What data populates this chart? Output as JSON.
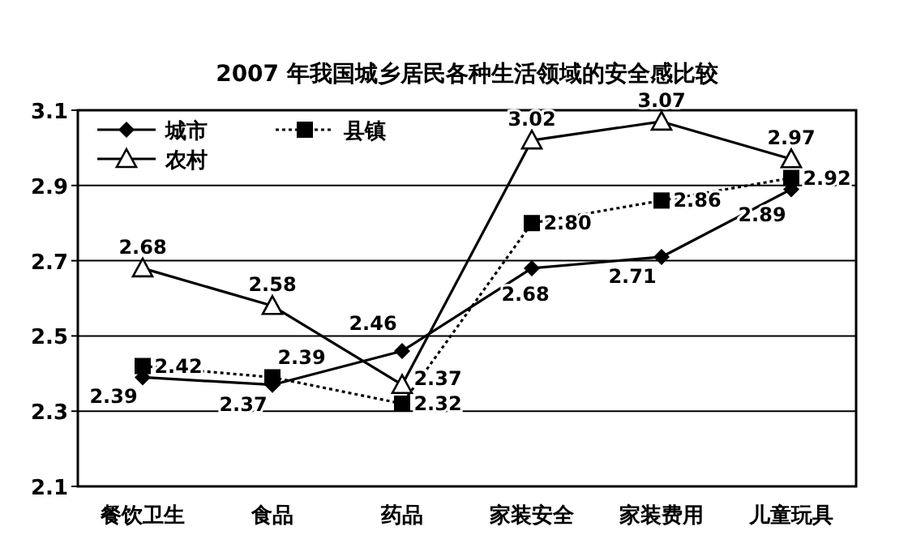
{
  "chart_data": {
    "type": "line",
    "title": "2007 年我国城乡居民各种生活领域的安全感比较",
    "categories": [
      "餐饮卫生",
      "食品",
      "药品",
      "家装安全",
      "家装费用",
      "儿童玩具"
    ],
    "series": [
      {
        "name": "城市",
        "color": "#000000",
        "marker": "diamond",
        "line_style": "solid",
        "values": [
          2.39,
          2.37,
          2.46,
          2.68,
          2.71,
          2.89
        ]
      },
      {
        "name": "县镇",
        "color": "#000000",
        "marker": "square",
        "line_style": "dotted",
        "values": [
          2.42,
          2.39,
          2.32,
          2.8,
          2.86,
          2.92
        ],
        "value_labels": [
          "2.42",
          "2.39",
          "2.32",
          "2.80",
          "2.86",
          "2.92"
        ]
      },
      {
        "name": "农村",
        "color": "#000000",
        "marker": "triangle",
        "line_style": "solid",
        "values": [
          2.68,
          2.58,
          2.37,
          3.02,
          3.07,
          2.97
        ]
      }
    ],
    "ylim": [
      2.1,
      3.1
    ],
    "yticks": [
      2.1,
      2.3,
      2.5,
      2.7,
      2.9,
      3.1
    ],
    "grid": "y",
    "legend": "top left",
    "data_labels": true
  }
}
